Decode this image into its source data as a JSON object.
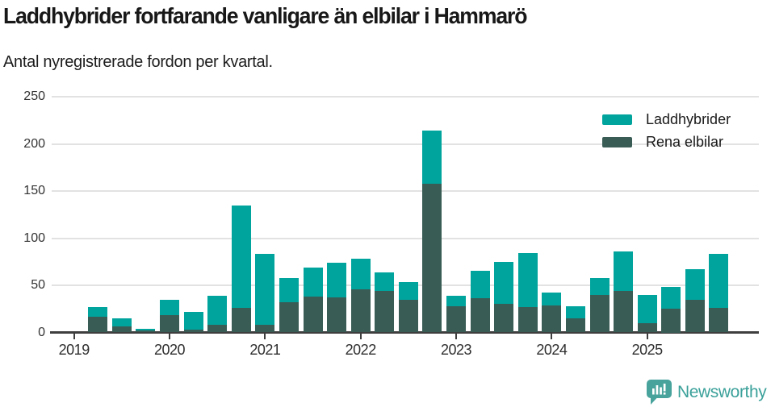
{
  "header": {
    "title": "Laddhybrider fortfarande vanligare än elbilar i Hammarö",
    "subtitle": "Antal nyregistrerade fordon per kvartal."
  },
  "legend": {
    "items": [
      {
        "label": "Laddhybrider",
        "color": "#00a49d"
      },
      {
        "label": "Rena elbilar",
        "color": "#395c55"
      }
    ]
  },
  "footer": {
    "brand": "Newsworthy",
    "brand_color": "#3ba19a",
    "logo_icon": "bar-chart-speech-bubble"
  },
  "colors": {
    "laddhybrider": "#00a49d",
    "rena_elbilar": "#395c55",
    "grid": "#e2e2e2",
    "axis": "#3e3e3e",
    "background": "#ffffff"
  },
  "chart_data": {
    "type": "bar",
    "stacked": true,
    "title": "Laddhybrider fortfarande vanligare än elbilar i Hammarö",
    "subtitle": "Antal nyregistrerade fordon per kvartal.",
    "xlabel": "",
    "ylabel": "",
    "ylim": [
      0,
      250
    ],
    "yticks": [
      0,
      50,
      100,
      150,
      200,
      250
    ],
    "grid": true,
    "legend_position": "top-right",
    "x_axis_tick_labels": [
      "2019",
      "2020",
      "2021",
      "2022",
      "2023",
      "2024",
      "2025"
    ],
    "categories": [
      "2019 Q1",
      "2019 Q2",
      "2019 Q3",
      "2019 Q4",
      "2020 Q1",
      "2020 Q2",
      "2020 Q3",
      "2020 Q4",
      "2021 Q1",
      "2021 Q2",
      "2021 Q3",
      "2021 Q4",
      "2022 Q1",
      "2022 Q2",
      "2022 Q3",
      "2022 Q4",
      "2023 Q1",
      "2023 Q2",
      "2023 Q3",
      "2023 Q4",
      "2024 Q1",
      "2024 Q2",
      "2024 Q3",
      "2024 Q4",
      "2025 Q1",
      "2025 Q2",
      "2025 Q3",
      "2025 Q4"
    ],
    "series": [
      {
        "name": "Laddhybrider",
        "color": "#00a49d",
        "values": [
          0,
          10,
          9,
          2,
          17,
          19,
          31,
          109,
          75,
          26,
          31,
          37,
          32,
          20,
          18,
          56,
          11,
          29,
          45,
          57,
          13,
          13,
          18,
          42,
          30,
          23,
          32,
          57
        ]
      },
      {
        "name": "Rena elbilar",
        "color": "#395c55",
        "values": [
          0,
          17,
          6,
          2,
          18,
          3,
          8,
          26,
          8,
          32,
          38,
          37,
          46,
          44,
          35,
          158,
          28,
          36,
          30,
          27,
          29,
          15,
          40,
          44,
          10,
          25,
          35,
          26
        ]
      }
    ],
    "totals": [
      0,
      27,
      15,
      4,
      35,
      22,
      39,
      135,
      83,
      58,
      69,
      74,
      78,
      64,
      53,
      214,
      39,
      65,
      75,
      84,
      42,
      28,
      58,
      86,
      40,
      48,
      67,
      83
    ]
  }
}
